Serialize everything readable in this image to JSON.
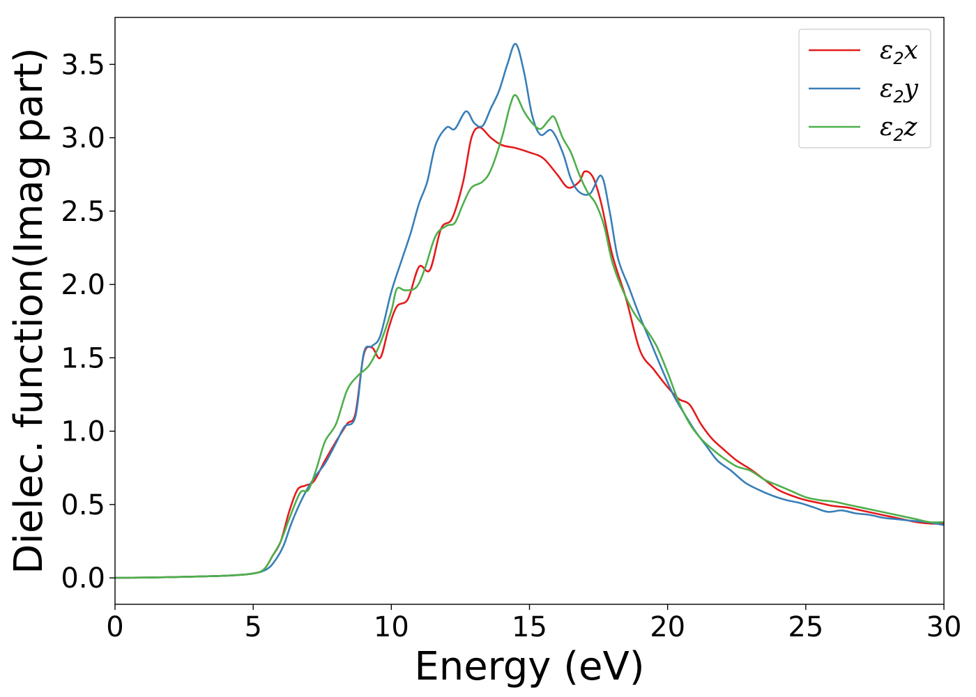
{
  "chart_data": {
    "type": "line",
    "xlabel": "Energy (eV)",
    "ylabel": "Dielec. function(Imag part)",
    "xlim": [
      0,
      30
    ],
    "ylim": [
      -0.18,
      3.82
    ],
    "xticks": [
      0,
      5,
      10,
      15,
      20,
      25,
      30
    ],
    "xtick_labels": [
      "0",
      "5",
      "10",
      "15",
      "20",
      "25",
      "30"
    ],
    "yticks": [
      0.0,
      0.5,
      1.0,
      1.5,
      2.0,
      2.5,
      3.0,
      3.5
    ],
    "ytick_labels": [
      "0.0",
      "0.5",
      "1.0",
      "1.5",
      "2.0",
      "2.5",
      "3.0",
      "3.5"
    ],
    "grid": false,
    "legend_position": "top-right",
    "series": [
      {
        "name": "ε2x",
        "legend": {
          "symbol": "ε",
          "sub": "2",
          "suffix": "x"
        },
        "color": "#e41a1c",
        "points": [
          [
            0,
            0.0
          ],
          [
            2,
            0.005
          ],
          [
            4,
            0.015
          ],
          [
            5,
            0.03
          ],
          [
            5.4,
            0.06
          ],
          [
            5.7,
            0.15
          ],
          [
            6.0,
            0.25
          ],
          [
            6.3,
            0.45
          ],
          [
            6.6,
            0.6
          ],
          [
            6.9,
            0.63
          ],
          [
            7.2,
            0.66
          ],
          [
            7.6,
            0.8
          ],
          [
            8.0,
            0.93
          ],
          [
            8.4,
            1.05
          ],
          [
            8.7,
            1.12
          ],
          [
            9.0,
            1.52
          ],
          [
            9.3,
            1.57
          ],
          [
            9.6,
            1.5
          ],
          [
            9.9,
            1.7
          ],
          [
            10.2,
            1.85
          ],
          [
            10.6,
            1.9
          ],
          [
            11.0,
            2.12
          ],
          [
            11.4,
            2.1
          ],
          [
            11.8,
            2.38
          ],
          [
            12.2,
            2.45
          ],
          [
            12.6,
            2.7
          ],
          [
            12.9,
            3.0
          ],
          [
            13.2,
            3.07
          ],
          [
            13.6,
            3.0
          ],
          [
            14.0,
            2.95
          ],
          [
            14.5,
            2.93
          ],
          [
            15.0,
            2.9
          ],
          [
            15.5,
            2.86
          ],
          [
            16.0,
            2.75
          ],
          [
            16.4,
            2.66
          ],
          [
            16.8,
            2.7
          ],
          [
            17.0,
            2.77
          ],
          [
            17.3,
            2.73
          ],
          [
            17.6,
            2.55
          ],
          [
            18.0,
            2.2
          ],
          [
            18.5,
            1.9
          ],
          [
            19.0,
            1.55
          ],
          [
            19.5,
            1.42
          ],
          [
            20.0,
            1.3
          ],
          [
            20.4,
            1.22
          ],
          [
            20.8,
            1.18
          ],
          [
            21.2,
            1.05
          ],
          [
            21.6,
            0.95
          ],
          [
            22.0,
            0.88
          ],
          [
            22.5,
            0.8
          ],
          [
            23.0,
            0.74
          ],
          [
            23.5,
            0.67
          ],
          [
            24.0,
            0.6
          ],
          [
            24.5,
            0.56
          ],
          [
            25.0,
            0.53
          ],
          [
            25.5,
            0.51
          ],
          [
            26.0,
            0.49
          ],
          [
            26.5,
            0.48
          ],
          [
            27.0,
            0.46
          ],
          [
            27.5,
            0.44
          ],
          [
            28.0,
            0.42
          ],
          [
            28.5,
            0.4
          ],
          [
            29.0,
            0.38
          ],
          [
            29.5,
            0.37
          ],
          [
            30.0,
            0.37
          ]
        ]
      },
      {
        "name": "ε2y",
        "legend": {
          "symbol": "ε",
          "sub": "2",
          "suffix": "y"
        },
        "color": "#377eb8",
        "points": [
          [
            0,
            0.0
          ],
          [
            2,
            0.005
          ],
          [
            4,
            0.015
          ],
          [
            5,
            0.03
          ],
          [
            5.5,
            0.06
          ],
          [
            5.8,
            0.12
          ],
          [
            6.1,
            0.22
          ],
          [
            6.4,
            0.38
          ],
          [
            6.8,
            0.55
          ],
          [
            7.2,
            0.68
          ],
          [
            7.6,
            0.78
          ],
          [
            8.0,
            0.92
          ],
          [
            8.3,
            1.03
          ],
          [
            8.7,
            1.1
          ],
          [
            9.0,
            1.53
          ],
          [
            9.3,
            1.58
          ],
          [
            9.6,
            1.65
          ],
          [
            10.0,
            1.95
          ],
          [
            10.4,
            2.18
          ],
          [
            10.7,
            2.35
          ],
          [
            11.0,
            2.55
          ],
          [
            11.3,
            2.7
          ],
          [
            11.6,
            2.95
          ],
          [
            12.0,
            3.07
          ],
          [
            12.3,
            3.06
          ],
          [
            12.7,
            3.18
          ],
          [
            13.0,
            3.1
          ],
          [
            13.3,
            3.08
          ],
          [
            13.6,
            3.2
          ],
          [
            13.9,
            3.32
          ],
          [
            14.2,
            3.5
          ],
          [
            14.5,
            3.64
          ],
          [
            14.8,
            3.45
          ],
          [
            15.1,
            3.15
          ],
          [
            15.4,
            3.02
          ],
          [
            15.8,
            3.05
          ],
          [
            16.2,
            2.9
          ],
          [
            16.5,
            2.72
          ],
          [
            16.8,
            2.63
          ],
          [
            17.2,
            2.62
          ],
          [
            17.6,
            2.74
          ],
          [
            17.9,
            2.5
          ],
          [
            18.2,
            2.18
          ],
          [
            18.6,
            1.98
          ],
          [
            19.0,
            1.78
          ],
          [
            19.4,
            1.6
          ],
          [
            19.8,
            1.42
          ],
          [
            20.2,
            1.25
          ],
          [
            20.6,
            1.12
          ],
          [
            21.0,
            1.0
          ],
          [
            21.4,
            0.9
          ],
          [
            21.8,
            0.8
          ],
          [
            22.3,
            0.73
          ],
          [
            22.8,
            0.65
          ],
          [
            23.3,
            0.6
          ],
          [
            23.8,
            0.56
          ],
          [
            24.3,
            0.53
          ],
          [
            24.8,
            0.51
          ],
          [
            25.3,
            0.48
          ],
          [
            25.8,
            0.45
          ],
          [
            26.3,
            0.46
          ],
          [
            26.8,
            0.44
          ],
          [
            27.3,
            0.43
          ],
          [
            27.8,
            0.41
          ],
          [
            28.3,
            0.4
          ],
          [
            28.8,
            0.39
          ],
          [
            29.4,
            0.38
          ],
          [
            30.0,
            0.36
          ]
        ]
      },
      {
        "name": "ε2z",
        "legend": {
          "symbol": "ε",
          "sub": "2",
          "suffix": "z"
        },
        "color": "#4daf4a",
        "points": [
          [
            0,
            0.0
          ],
          [
            2,
            0.005
          ],
          [
            4,
            0.015
          ],
          [
            5,
            0.03
          ],
          [
            5.4,
            0.06
          ],
          [
            5.7,
            0.15
          ],
          [
            6.0,
            0.25
          ],
          [
            6.3,
            0.4
          ],
          [
            6.7,
            0.58
          ],
          [
            7.0,
            0.6
          ],
          [
            7.3,
            0.75
          ],
          [
            7.6,
            0.93
          ],
          [
            8.0,
            1.05
          ],
          [
            8.4,
            1.28
          ],
          [
            8.8,
            1.38
          ],
          [
            9.2,
            1.45
          ],
          [
            9.6,
            1.6
          ],
          [
            10.0,
            1.82
          ],
          [
            10.2,
            1.97
          ],
          [
            10.5,
            1.96
          ],
          [
            10.9,
            1.98
          ],
          [
            11.2,
            2.1
          ],
          [
            11.6,
            2.33
          ],
          [
            12.0,
            2.4
          ],
          [
            12.3,
            2.42
          ],
          [
            12.6,
            2.55
          ],
          [
            12.9,
            2.66
          ],
          [
            13.3,
            2.7
          ],
          [
            13.6,
            2.78
          ],
          [
            14.0,
            3.0
          ],
          [
            14.3,
            3.22
          ],
          [
            14.5,
            3.29
          ],
          [
            14.8,
            3.18
          ],
          [
            15.1,
            3.1
          ],
          [
            15.4,
            3.06
          ],
          [
            15.7,
            3.12
          ],
          [
            15.9,
            3.14
          ],
          [
            16.2,
            3.0
          ],
          [
            16.5,
            2.9
          ],
          [
            16.8,
            2.75
          ],
          [
            17.1,
            2.63
          ],
          [
            17.4,
            2.55
          ],
          [
            17.7,
            2.4
          ],
          [
            18.0,
            2.15
          ],
          [
            18.4,
            1.95
          ],
          [
            18.8,
            1.8
          ],
          [
            19.2,
            1.7
          ],
          [
            19.6,
            1.58
          ],
          [
            20.0,
            1.4
          ],
          [
            20.4,
            1.2
          ],
          [
            20.8,
            1.05
          ],
          [
            21.2,
            0.95
          ],
          [
            21.6,
            0.88
          ],
          [
            22.0,
            0.82
          ],
          [
            22.5,
            0.76
          ],
          [
            23.0,
            0.73
          ],
          [
            23.5,
            0.67
          ],
          [
            24.0,
            0.63
          ],
          [
            24.5,
            0.59
          ],
          [
            25.0,
            0.55
          ],
          [
            25.5,
            0.53
          ],
          [
            26.0,
            0.52
          ],
          [
            26.5,
            0.5
          ],
          [
            27.0,
            0.48
          ],
          [
            27.5,
            0.46
          ],
          [
            28.0,
            0.44
          ],
          [
            28.5,
            0.42
          ],
          [
            29.0,
            0.4
          ],
          [
            29.5,
            0.38
          ],
          [
            30.0,
            0.38
          ]
        ]
      }
    ]
  }
}
